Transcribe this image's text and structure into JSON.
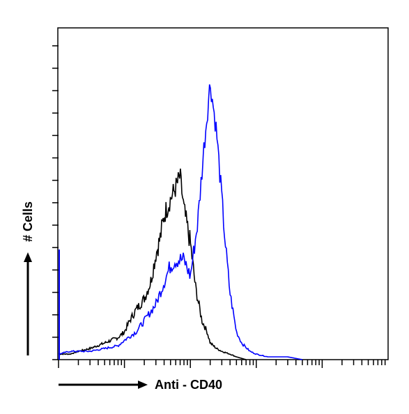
{
  "chart_data": {
    "type": "line",
    "title": "",
    "xlabel": "Anti - CD40",
    "ylabel": "# Cells",
    "x_scale": "log",
    "xlim": [
      1,
      100000
    ],
    "ylim": [
      0,
      100
    ],
    "grid": false,
    "legend": "none",
    "series": [
      {
        "color": "#000000",
        "x": [
          1,
          1.5,
          2,
          3,
          5,
          8,
          10,
          12,
          15,
          20,
          25,
          30,
          35,
          40,
          50,
          60,
          70,
          80,
          100,
          120,
          150,
          180,
          200,
          250,
          300,
          400,
          500,
          700
        ],
        "values": [
          2,
          2,
          3,
          4,
          6,
          8,
          10,
          14,
          18,
          22,
          28,
          38,
          44,
          52,
          58,
          62,
          66,
          54,
          42,
          26,
          14,
          10,
          6,
          4,
          3,
          2,
          1,
          0
        ]
      },
      {
        "color": "#0000ff",
        "x": [
          1,
          1.5,
          2,
          3,
          5,
          8,
          10,
          15,
          20,
          30,
          40,
          50,
          60,
          80,
          100,
          130,
          160,
          200,
          250,
          300,
          350,
          400,
          500,
          600,
          800,
          1000,
          1500,
          2000,
          3000,
          5000
        ],
        "values": [
          2,
          3,
          3,
          3,
          4,
          5,
          7,
          10,
          14,
          20,
          28,
          34,
          36,
          36,
          30,
          50,
          76,
          100,
          82,
          58,
          38,
          24,
          10,
          6,
          3,
          2,
          1,
          1,
          1,
          0
        ]
      }
    ]
  }
}
